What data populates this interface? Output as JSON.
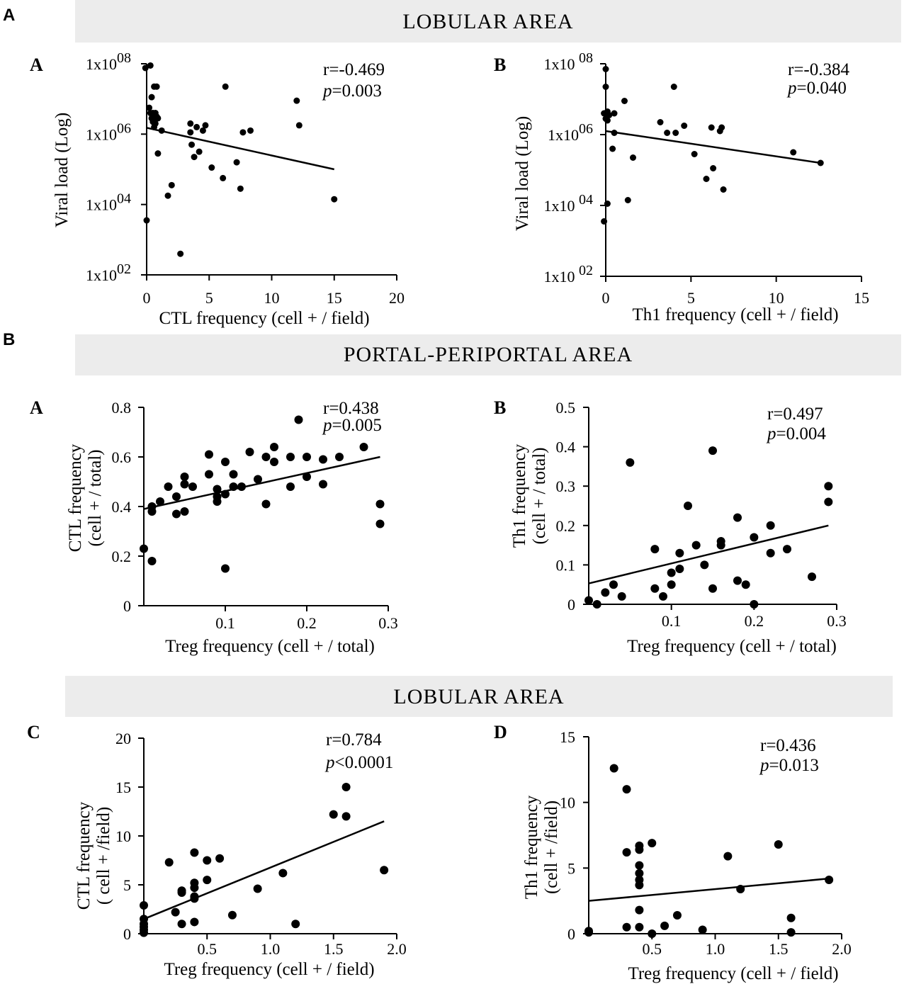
{
  "section_a": {
    "label": "A",
    "banner": "LOBULAR  AREA"
  },
  "section_b": {
    "label": "B",
    "banner": "PORTAL-PERIPORTAL AREA",
    "banner2": "LOBULAR  AREA"
  },
  "chart_data": [
    {
      "id": "p1",
      "panel": "A",
      "type": "scatter",
      "log": true,
      "xlabel": "CTL frequency   (cell + / field)",
      "ylabel": "Viral load  (Log)",
      "xlim": [
        0,
        20
      ],
      "xticks": [
        0,
        5,
        10,
        15,
        20
      ],
      "ylim": [
        2,
        8
      ],
      "yticks": [
        {
          "v": 8,
          "base": "1x10",
          "exp": "08"
        },
        {
          "v": 6,
          "base": "1x10",
          "exp": "06"
        },
        {
          "v": 4,
          "base": "1x10",
          "exp": "04"
        },
        {
          "v": 2,
          "base": "1x10",
          "exp": "02"
        }
      ],
      "r": "r=-0.469",
      "p_label": "p",
      "p_val": "=0.003",
      "fit": [
        [
          0,
          6.18
        ],
        [
          15,
          5.0
        ]
      ],
      "points": [
        [
          -0.1,
          7.88
        ],
        [
          0.3,
          7.95
        ],
        [
          0.6,
          7.35
        ],
        [
          0.8,
          7.35
        ],
        [
          0.4,
          7.05
        ],
        [
          0.2,
          6.75
        ],
        [
          0.3,
          6.6
        ],
        [
          0.5,
          6.6
        ],
        [
          0.7,
          6.6
        ],
        [
          0.4,
          6.45
        ],
        [
          0.6,
          6.45
        ],
        [
          0.8,
          6.5
        ],
        [
          0.5,
          6.35
        ],
        [
          0.7,
          6.3
        ],
        [
          0.9,
          6.45
        ],
        [
          0.6,
          6.2
        ],
        [
          1.2,
          6.1
        ],
        [
          0.9,
          5.45
        ],
        [
          1.7,
          4.25
        ],
        [
          2.0,
          4.55
        ],
        [
          2.7,
          2.6
        ],
        [
          3.5,
          6.05
        ],
        [
          3.5,
          6.3
        ],
        [
          4.0,
          6.2
        ],
        [
          4.5,
          6.1
        ],
        [
          3.6,
          5.7
        ],
        [
          3.8,
          5.35
        ],
        [
          4.2,
          5.5
        ],
        [
          4.7,
          6.25
        ],
        [
          5.2,
          5.05
        ],
        [
          6.1,
          4.75
        ],
        [
          6.3,
          7.35
        ],
        [
          7.2,
          5.2
        ],
        [
          7.5,
          4.45
        ],
        [
          7.7,
          6.05
        ],
        [
          8.3,
          6.1
        ],
        [
          12.0,
          6.95
        ],
        [
          12.2,
          6.25
        ],
        [
          15.0,
          4.15
        ],
        [
          0.0,
          3.55
        ]
      ]
    },
    {
      "id": "p2",
      "panel": "B",
      "type": "scatter",
      "log": true,
      "xlabel": "Th1  frequency    (cell + / field)",
      "ylabel": "Viral load  (Log)",
      "xlim": [
        0,
        15
      ],
      "xticks": [
        0,
        5,
        10,
        15
      ],
      "ylim": [
        2,
        8
      ],
      "yticks": [
        {
          "v": 8,
          "base": "1x10 ",
          "exp": "08"
        },
        {
          "v": 6,
          "base": "1x10",
          "exp": "06"
        },
        {
          "v": 4,
          "base": "1x10 ",
          "exp": "04"
        },
        {
          "v": 2,
          "base": "1x10 ",
          "exp": "02"
        }
      ],
      "r": "r=-0.384",
      "p_label": "p",
      "p_val": "=0.040",
      "fit": [
        [
          0,
          6.1
        ],
        [
          12.6,
          5.2
        ]
      ],
      "points": [
        [
          0,
          7.85
        ],
        [
          0,
          7.35
        ],
        [
          1.1,
          6.95
        ],
        [
          4.0,
          7.35
        ],
        [
          -0.1,
          6.6
        ],
        [
          0.1,
          6.65
        ],
        [
          0.2,
          6.55
        ],
        [
          0.5,
          6.6
        ],
        [
          0,
          6.45
        ],
        [
          0.1,
          6.4
        ],
        [
          3.2,
          6.35
        ],
        [
          3.6,
          6.05
        ],
        [
          4.1,
          6.05
        ],
        [
          4.6,
          6.25
        ],
        [
          0.5,
          6.05
        ],
        [
          0.4,
          5.6
        ],
        [
          6.2,
          6.2
        ],
        [
          6.7,
          6.1
        ],
        [
          6.8,
          6.2
        ],
        [
          1.6,
          5.35
        ],
        [
          5.2,
          5.45
        ],
        [
          6.3,
          5.05
        ],
        [
          5.9,
          4.75
        ],
        [
          6.9,
          4.45
        ],
        [
          11.0,
          5.5
        ],
        [
          12.6,
          5.2
        ],
        [
          0.1,
          4.05
        ],
        [
          1.3,
          4.15
        ],
        [
          -0.1,
          3.55
        ]
      ]
    },
    {
      "id": "p3",
      "panel": "A",
      "type": "scatter",
      "log": false,
      "xlabel": "Treg frequency (cell + / total)",
      "ylabel": [
        "CTL frequency",
        "(cell + / total)"
      ],
      "xlim": [
        0,
        0.3
      ],
      "xticks": [
        0.1,
        0.2,
        0.3
      ],
      "xtick_labels": [
        "0.1",
        "0.2",
        "0.3"
      ],
      "ylim": [
        0,
        0.8
      ],
      "yticks": [
        0,
        0.2,
        0.4,
        0.6,
        0.8
      ],
      "ytick_labels": [
        "0",
        "0.2",
        "0.4",
        "0.6",
        "0.8"
      ],
      "r": "r=0.438",
      "p_label": "p",
      "p_val": "=0.005",
      "fit": [
        [
          0,
          0.39
        ],
        [
          0.29,
          0.6
        ]
      ],
      "points": [
        [
          0.0,
          0.23
        ],
        [
          0.01,
          0.18
        ],
        [
          0.01,
          0.38
        ],
        [
          0.01,
          0.4
        ],
        [
          0.02,
          0.42
        ],
        [
          0.03,
          0.48
        ],
        [
          0.04,
          0.37
        ],
        [
          0.04,
          0.44
        ],
        [
          0.05,
          0.38
        ],
        [
          0.05,
          0.49
        ],
        [
          0.05,
          0.52
        ],
        [
          0.06,
          0.48
        ],
        [
          0.08,
          0.53
        ],
        [
          0.08,
          0.61
        ],
        [
          0.09,
          0.42
        ],
        [
          0.09,
          0.44
        ],
        [
          0.09,
          0.47
        ],
        [
          0.1,
          0.45
        ],
        [
          0.1,
          0.58
        ],
        [
          0.1,
          0.15
        ],
        [
          0.11,
          0.48
        ],
        [
          0.11,
          0.53
        ],
        [
          0.12,
          0.48
        ],
        [
          0.13,
          0.62
        ],
        [
          0.14,
          0.51
        ],
        [
          0.15,
          0.41
        ],
        [
          0.15,
          0.6
        ],
        [
          0.16,
          0.58
        ],
        [
          0.16,
          0.64
        ],
        [
          0.18,
          0.48
        ],
        [
          0.18,
          0.6
        ],
        [
          0.19,
          0.75
        ],
        [
          0.2,
          0.52
        ],
        [
          0.2,
          0.6
        ],
        [
          0.22,
          0.49
        ],
        [
          0.22,
          0.59
        ],
        [
          0.24,
          0.6
        ],
        [
          0.27,
          0.64
        ],
        [
          0.29,
          0.41
        ],
        [
          0.29,
          0.33
        ]
      ]
    },
    {
      "id": "p4",
      "panel": "B",
      "type": "scatter",
      "log": false,
      "xlabel": "Treg frequency (cell + / total)",
      "ylabel": [
        "Th1 frequency",
        "(cell + / total)"
      ],
      "xlim": [
        0,
        0.3
      ],
      "xticks": [
        0.1,
        0.2,
        0.3
      ],
      "xtick_labels": [
        "0.1",
        "0.2",
        "0.3"
      ],
      "ylim": [
        0,
        0.5
      ],
      "yticks": [
        0,
        0.1,
        0.2,
        0.3,
        0.4,
        0.5
      ],
      "ytick_labels": [
        "0",
        "0.1",
        "0.2",
        "0.3",
        "0.4",
        "0.5"
      ],
      "r": "r=0.497",
      "p_label": "p",
      "p_val": "=0.004",
      "fit": [
        [
          0,
          0.053
        ],
        [
          0.29,
          0.2
        ]
      ],
      "points": [
        [
          0.0,
          0.01
        ],
        [
          0.01,
          0.0
        ],
        [
          0.02,
          0.03
        ],
        [
          0.03,
          0.05
        ],
        [
          0.04,
          0.02
        ],
        [
          0.05,
          0.36
        ],
        [
          0.08,
          0.14
        ],
        [
          0.08,
          0.04
        ],
        [
          0.09,
          0.02
        ],
        [
          0.1,
          0.08
        ],
        [
          0.1,
          0.05
        ],
        [
          0.11,
          0.13
        ],
        [
          0.11,
          0.09
        ],
        [
          0.12,
          0.25
        ],
        [
          0.13,
          0.15
        ],
        [
          0.14,
          0.1
        ],
        [
          0.15,
          0.04
        ],
        [
          0.15,
          0.39
        ],
        [
          0.16,
          0.16
        ],
        [
          0.16,
          0.15
        ],
        [
          0.18,
          0.22
        ],
        [
          0.18,
          0.06
        ],
        [
          0.19,
          0.05
        ],
        [
          0.2,
          0.17
        ],
        [
          0.2,
          0.0
        ],
        [
          0.22,
          0.2
        ],
        [
          0.22,
          0.13
        ],
        [
          0.24,
          0.14
        ],
        [
          0.27,
          0.07
        ],
        [
          0.29,
          0.3
        ],
        [
          0.29,
          0.26
        ]
      ]
    },
    {
      "id": "p5",
      "panel": "C",
      "type": "scatter",
      "log": false,
      "xlabel": "Treg frequency (cell + /  field)",
      "ylabel": [
        "CTL frequency",
        "( cell + /field)"
      ],
      "xlim": [
        0,
        2
      ],
      "xticks": [
        0.5,
        1.0,
        1.5,
        2.0
      ],
      "xtick_labels": [
        "0.5",
        "1.0",
        "1.5",
        "2.0"
      ],
      "ylim": [
        0,
        20
      ],
      "yticks": [
        0,
        5,
        10,
        15,
        20
      ],
      "ytick_labels": [
        "0",
        "5",
        "10",
        "15",
        "20"
      ],
      "r": "r=0.784",
      "p_label": "p",
      "p_val": "<0.0001",
      "fit": [
        [
          0,
          1.5
        ],
        [
          1.9,
          11.5
        ]
      ],
      "points": [
        [
          0,
          0.1
        ],
        [
          0,
          0.4
        ],
        [
          0,
          0.7
        ],
        [
          0,
          1.0
        ],
        [
          0,
          1.5
        ],
        [
          0,
          2.9
        ],
        [
          0.2,
          7.3
        ],
        [
          0.25,
          2.2
        ],
        [
          0.3,
          4.2
        ],
        [
          0.3,
          1.0
        ],
        [
          0.3,
          4.4
        ],
        [
          0.4,
          1.2
        ],
        [
          0.4,
          3.6
        ],
        [
          0.4,
          3.8
        ],
        [
          0.4,
          4.7
        ],
        [
          0.4,
          5.2
        ],
        [
          0.4,
          8.3
        ],
        [
          0.5,
          5.5
        ],
        [
          0.5,
          7.5
        ],
        [
          0.6,
          7.7
        ],
        [
          0.7,
          1.9
        ],
        [
          0.9,
          4.6
        ],
        [
          1.1,
          6.2
        ],
        [
          1.2,
          1.0
        ],
        [
          1.5,
          12.2
        ],
        [
          1.6,
          12.0
        ],
        [
          1.6,
          15.0
        ],
        [
          1.9,
          6.5
        ]
      ]
    },
    {
      "id": "p6",
      "panel": "D",
      "type": "scatter",
      "log": false,
      "xlabel": "Treg frequency (cell + /  field)",
      "ylabel": [
        "Th1 frequency",
        "(cell + /field)"
      ],
      "xlim": [
        0,
        2
      ],
      "xticks": [
        0.5,
        1.0,
        1.5,
        2.0
      ],
      "xtick_labels": [
        "0.5",
        "1.0",
        "1.5",
        "2.0"
      ],
      "ylim": [
        0,
        15
      ],
      "yticks": [
        0,
        5,
        10,
        15
      ],
      "ytick_labels": [
        "0",
        "5",
        "10",
        "15"
      ],
      "r": "r=0.436",
      "p_label": "p",
      "p_val": "=0.013",
      "fit": [
        [
          0,
          2.5
        ],
        [
          1.9,
          4.2
        ]
      ],
      "points": [
        [
          0,
          0.1
        ],
        [
          0,
          0.2
        ],
        [
          0.2,
          12.6
        ],
        [
          0.3,
          11.0
        ],
        [
          0.3,
          6.2
        ],
        [
          0.3,
          0.5
        ],
        [
          0.4,
          6.7
        ],
        [
          0.4,
          6.4
        ],
        [
          0.4,
          5.2
        ],
        [
          0.4,
          4.6
        ],
        [
          0.4,
          4.1
        ],
        [
          0.4,
          3.7
        ],
        [
          0.4,
          1.8
        ],
        [
          0.4,
          0.5
        ],
        [
          0.5,
          6.9
        ],
        [
          0.5,
          0.0
        ],
        [
          0.6,
          0.6
        ],
        [
          0.7,
          1.4
        ],
        [
          0.9,
          0.3
        ],
        [
          1.1,
          5.9
        ],
        [
          1.2,
          3.4
        ],
        [
          1.5,
          6.8
        ],
        [
          1.6,
          1.2
        ],
        [
          1.6,
          0.1
        ],
        [
          1.9,
          4.1
        ]
      ]
    }
  ]
}
